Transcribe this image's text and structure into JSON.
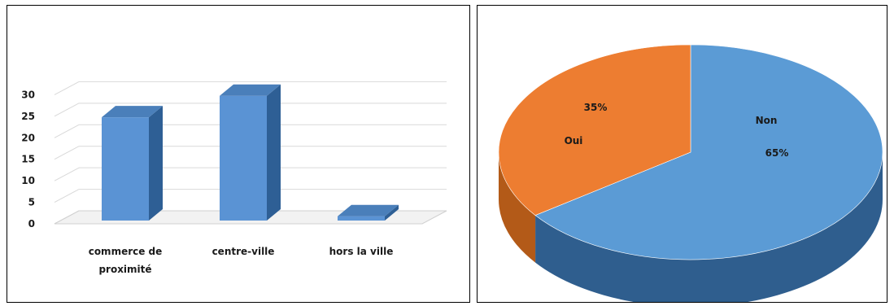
{
  "chart_data": [
    {
      "type": "bar",
      "categories": [
        [
          "commerce de",
          "proximité"
        ],
        [
          "centre-ville"
        ],
        [
          "hors la ville"
        ]
      ],
      "values": [
        24,
        29,
        1
      ],
      "yticks": [
        "0",
        "5",
        "10",
        "15",
        "20",
        "25",
        "30"
      ],
      "ylim": [
        0,
        35
      ],
      "grid": true,
      "three_d": true,
      "colors": {
        "front": "#5a93d4",
        "side": "#2e5f95",
        "top": "#4a7fba"
      }
    },
    {
      "type": "pie",
      "slices": [
        {
          "name": "Non",
          "value": 65,
          "label": "65%",
          "color": "#5b9bd5",
          "side_color": "#2f5e8e"
        },
        {
          "name": "Oui",
          "value": 35,
          "label": "35%",
          "color": "#ed7d31",
          "side_color": "#b35a18"
        }
      ],
      "three_d": true
    }
  ]
}
